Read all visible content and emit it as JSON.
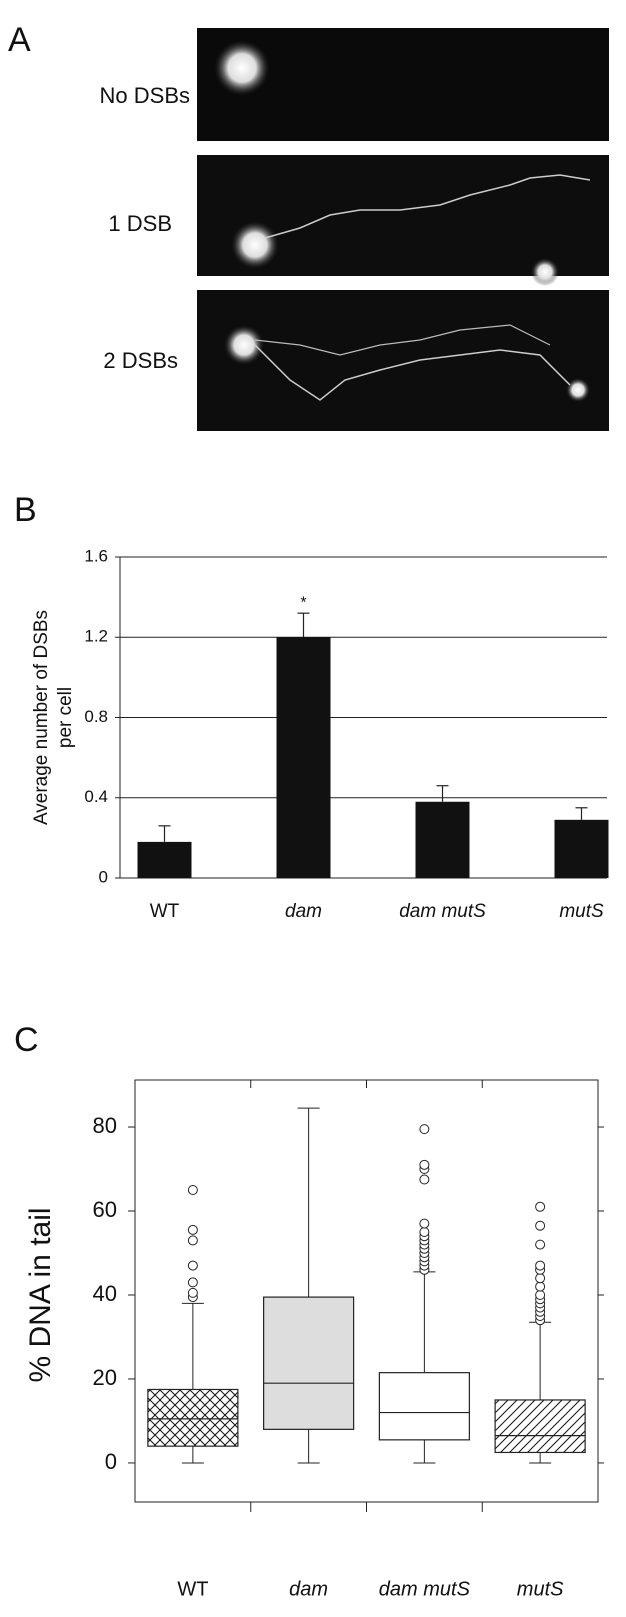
{
  "panel_labels": [
    "A",
    "B",
    "C"
  ],
  "images": {
    "labels": [
      "No DSBs",
      "1 DSB",
      "2 DSBs"
    ]
  },
  "chart_data": [
    {
      "type": "bar",
      "y_label_lines": [
        "Average number of DSBs",
        "per cell"
      ],
      "categories": [
        "WT",
        "dam",
        "dam mutS",
        "mutS"
      ],
      "values": [
        0.18,
        1.2,
        0.38,
        0.29
      ],
      "errors": [
        0.08,
        0.12,
        0.08,
        0.06
      ],
      "value_markers": [
        null,
        "*",
        null,
        null
      ],
      "color": "#111111",
      "ylim": [
        0,
        1.6
      ],
      "yticks": [
        0,
        0.4,
        0.8,
        1.2,
        1.6
      ],
      "grid": true
    },
    {
      "type": "box",
      "y_label": "% DNA in tail",
      "categories": [
        "WT",
        "dam",
        "dam mutS",
        "mutS"
      ],
      "boxes": [
        {
          "min": 0,
          "q1": 4,
          "median": 10.5,
          "q3": 17.5,
          "max": 38,
          "outliers": [
            39.5,
            40.5,
            43,
            47,
            53,
            55.5,
            65
          ],
          "fill": "crosshatch"
        },
        {
          "min": 0,
          "q1": 8,
          "median": 19,
          "q3": 39.5,
          "max": 84.5,
          "outliers": [],
          "fill": "#dddddd"
        },
        {
          "min": 0,
          "q1": 5.5,
          "median": 12,
          "q3": 21.5,
          "max": 45.5,
          "outliers": [
            46,
            47,
            48,
            49,
            50,
            51,
            52,
            53,
            54,
            55,
            57,
            67.5,
            70,
            71,
            79.5
          ],
          "fill": "#ffffff"
        },
        {
          "min": 0,
          "q1": 2.5,
          "median": 6.5,
          "q3": 15,
          "max": 33.5,
          "outliers": [
            34,
            35,
            36,
            37,
            38,
            39,
            40,
            42,
            44,
            46,
            47,
            52,
            56.5,
            61
          ],
          "fill": "diagonal"
        }
      ],
      "ylim": [
        -9.3,
        91.2
      ],
      "yticks": [
        0,
        20,
        40,
        60,
        80
      ]
    }
  ]
}
